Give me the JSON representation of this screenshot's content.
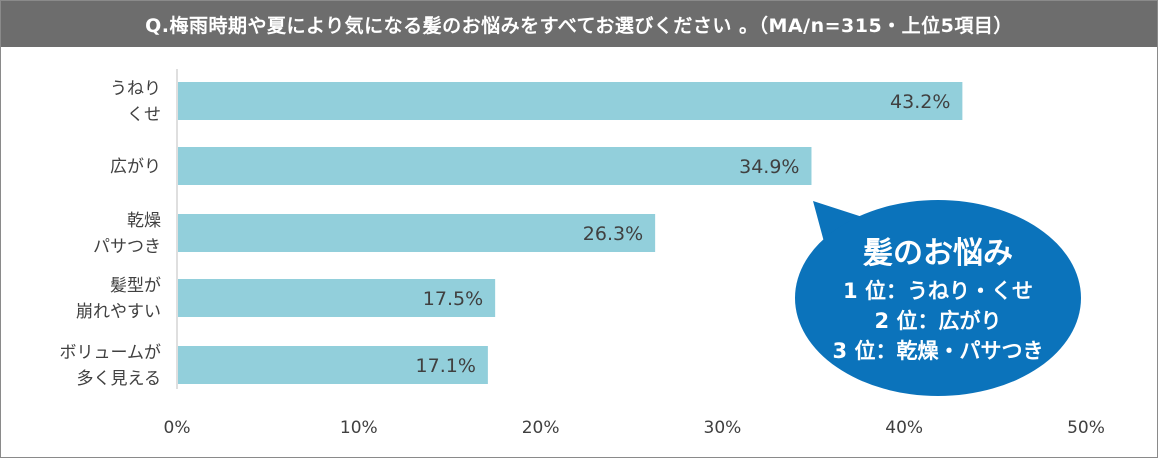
{
  "header": {
    "question": "Q.梅雨時期や夏により気になる髪のお悩みをすべてお選びください 。（MA/n=315・上位5項目）"
  },
  "colors": {
    "bar": "#92cfdb",
    "callout": "#0b73bb",
    "header_bg": "#6d6d6d"
  },
  "chart_data": {
    "type": "bar",
    "orientation": "horizontal",
    "categories": [
      [
        "うねり",
        "くせ"
      ],
      [
        "広がり"
      ],
      [
        "乾燥",
        "パサつき"
      ],
      [
        "髪型が",
        "崩れやすい"
      ],
      [
        "ボリュームが",
        "多く見える"
      ]
    ],
    "values": [
      43.2,
      34.9,
      26.3,
      17.5,
      17.1
    ],
    "value_labels": [
      "43.2%",
      "34.9%",
      "26.3%",
      "17.5%",
      "17.1%"
    ],
    "xlim": [
      0,
      50
    ],
    "xticks": [
      "0%",
      "10%",
      "20%",
      "30%",
      "40%",
      "50%"
    ],
    "grid": false
  },
  "callout": {
    "title": "髪のお悩み",
    "lines": [
      "1 位：うねり・くせ",
      "2 位：広がり",
      "3 位：乾燥・パサつき"
    ]
  }
}
